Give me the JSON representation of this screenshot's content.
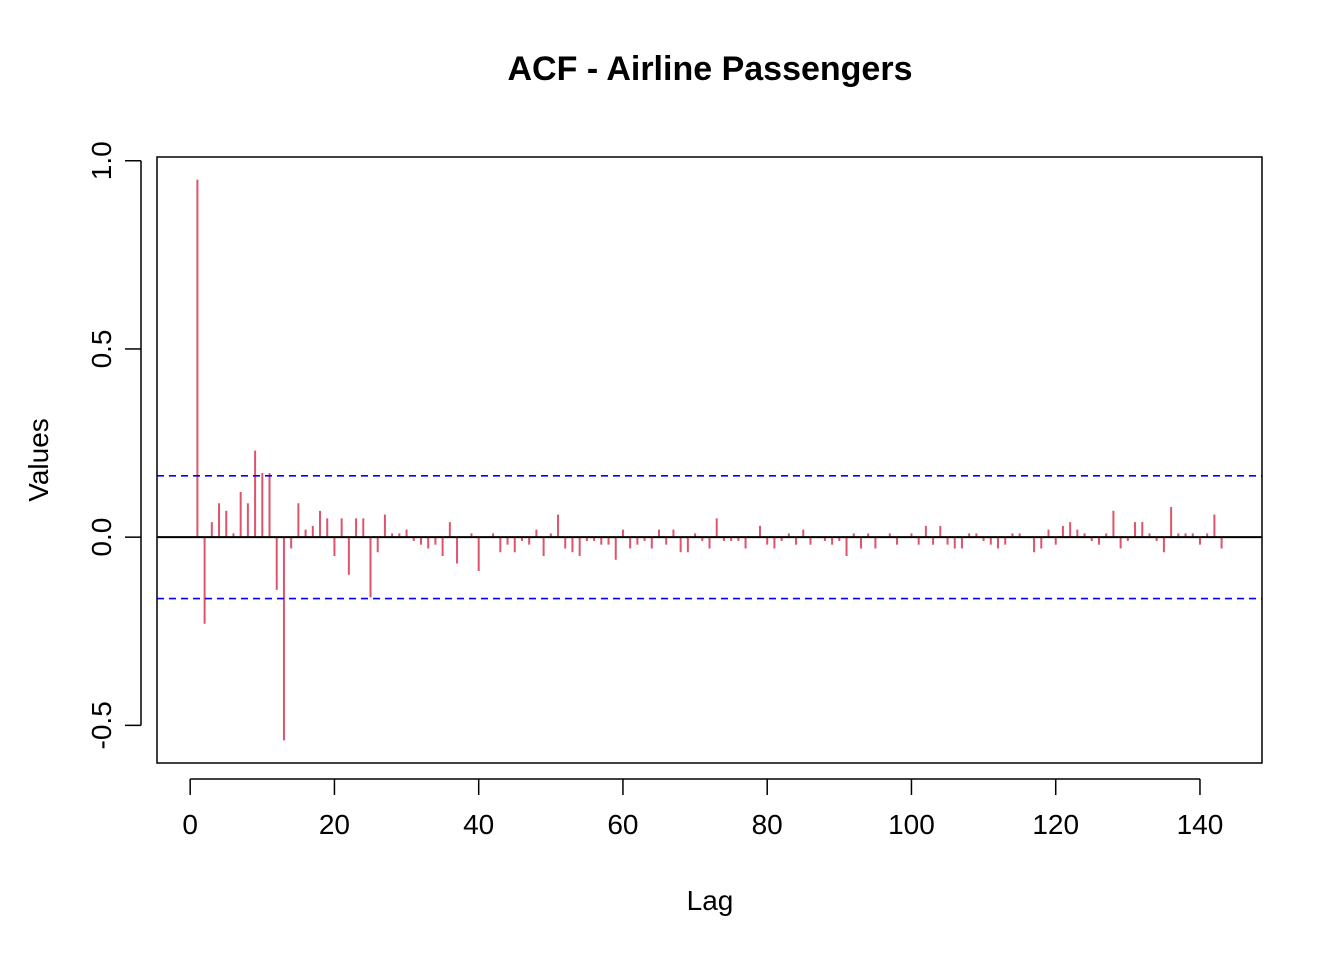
{
  "chart_data": {
    "type": "bar",
    "title": "ACF - Airline Passengers",
    "xlabel": "Lag",
    "ylabel": "Values",
    "xlim": [
      -4.6,
      148.6
    ],
    "ylim": [
      -0.6,
      1.01
    ],
    "x_ticks": [
      0,
      20,
      40,
      60,
      80,
      100,
      120,
      140
    ],
    "x_tick_labels": [
      "0",
      "20",
      "40",
      "60",
      "80",
      "100",
      "120",
      "140"
    ],
    "y_ticks": [
      -0.5,
      0.0,
      0.5,
      1.0
    ],
    "y_tick_labels": [
      "-0.5",
      "0.0",
      "0.5",
      "1.0"
    ],
    "confidence_bounds": [
      0.163,
      -0.163
    ],
    "grid": false,
    "colors": {
      "bars": "#DF536B",
      "confidence": "#0000FF",
      "zero_line": "#000000",
      "frame": "#000000"
    },
    "lags": [
      1,
      2,
      3,
      4,
      5,
      6,
      7,
      8,
      9,
      10,
      11,
      12,
      13,
      14,
      15,
      16,
      17,
      18,
      19,
      20,
      21,
      22,
      23,
      24,
      25,
      26,
      27,
      28,
      29,
      30,
      31,
      32,
      33,
      34,
      35,
      36,
      37,
      38,
      39,
      40,
      41,
      42,
      43,
      44,
      45,
      46,
      47,
      48,
      49,
      50,
      51,
      52,
      53,
      54,
      55,
      56,
      57,
      58,
      59,
      60,
      61,
      62,
      63,
      64,
      65,
      66,
      67,
      68,
      69,
      70,
      71,
      72,
      73,
      74,
      75,
      76,
      77,
      78,
      79,
      80,
      81,
      82,
      83,
      84,
      85,
      86,
      87,
      88,
      89,
      90,
      91,
      92,
      93,
      94,
      95,
      96,
      97,
      98,
      99,
      100,
      101,
      102,
      103,
      104,
      105,
      106,
      107,
      108,
      109,
      110,
      111,
      112,
      113,
      114,
      115,
      116,
      117,
      118,
      119,
      120,
      121,
      122,
      123,
      124,
      125,
      126,
      127,
      128,
      129,
      130,
      131,
      132,
      133,
      134,
      135,
      136,
      137,
      138,
      139,
      140,
      141,
      142,
      143
    ],
    "values": [
      0.95,
      -0.23,
      0.04,
      0.09,
      0.07,
      0.01,
      0.12,
      0.09,
      0.23,
      0.17,
      0.17,
      -0.14,
      -0.54,
      -0.03,
      0.09,
      0.02,
      0.03,
      0.07,
      0.05,
      -0.05,
      0.05,
      -0.1,
      0.05,
      0.05,
      -0.16,
      -0.04,
      0.06,
      0.01,
      0.01,
      0.02,
      -0.01,
      -0.02,
      -0.03,
      -0.02,
      -0.05,
      0.04,
      -0.07,
      0.0,
      0.01,
      -0.09,
      0.0,
      0.01,
      -0.04,
      -0.02,
      -0.04,
      -0.01,
      -0.02,
      0.02,
      -0.05,
      0.01,
      0.06,
      -0.03,
      -0.04,
      -0.05,
      -0.01,
      -0.01,
      -0.02,
      -0.02,
      -0.06,
      0.02,
      -0.03,
      -0.02,
      -0.01,
      -0.03,
      0.02,
      -0.02,
      0.02,
      -0.04,
      -0.04,
      0.01,
      -0.01,
      -0.03,
      0.05,
      -0.01,
      -0.01,
      -0.01,
      -0.03,
      0.0,
      0.03,
      -0.02,
      -0.03,
      -0.01,
      0.01,
      -0.02,
      0.02,
      -0.02,
      0.0,
      -0.01,
      -0.02,
      -0.01,
      -0.05,
      0.01,
      -0.03,
      0.01,
      -0.03,
      0.0,
      0.01,
      -0.02,
      0.0,
      0.01,
      -0.02,
      0.03,
      -0.02,
      0.03,
      -0.02,
      -0.03,
      -0.03,
      0.01,
      0.01,
      -0.01,
      -0.02,
      -0.03,
      -0.02,
      0.01,
      0.01,
      0.0,
      -0.04,
      -0.03,
      0.02,
      -0.02,
      0.03,
      0.04,
      0.02,
      0.01,
      -0.01,
      -0.02,
      0.01,
      0.07,
      -0.03,
      -0.01,
      0.04,
      0.04,
      0.01,
      -0.01,
      -0.04,
      0.08,
      0.01,
      0.01,
      0.01,
      -0.02,
      0.01,
      0.06,
      -0.03
    ]
  }
}
